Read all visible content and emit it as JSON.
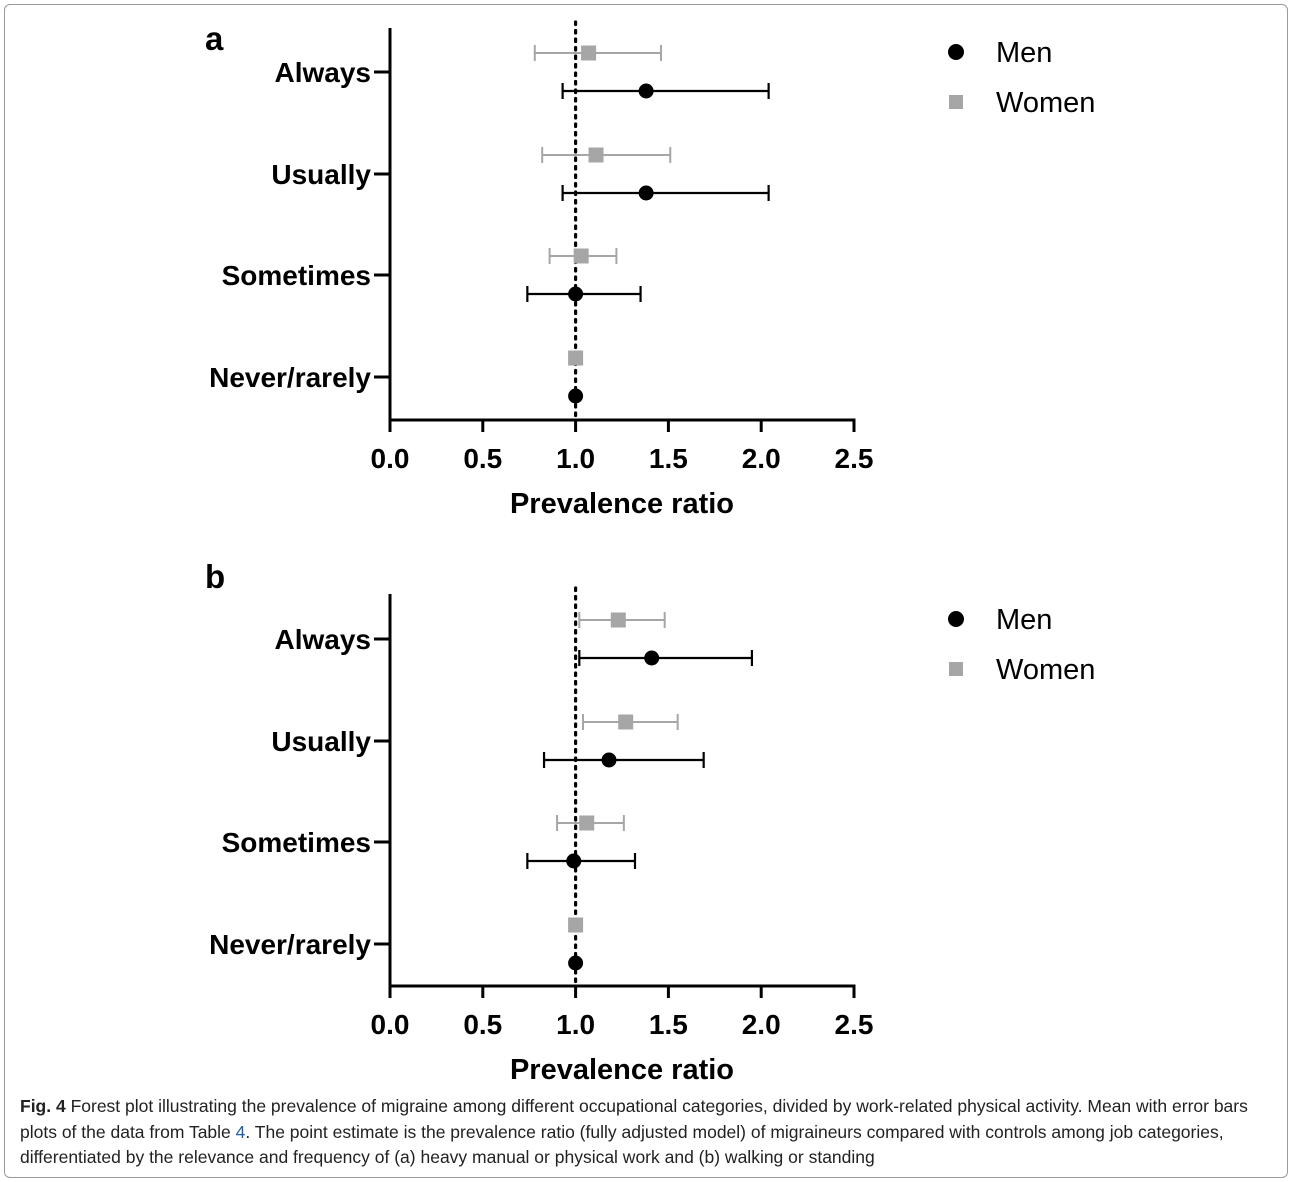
{
  "chart_data": [
    {
      "type": "forest",
      "panel": "a",
      "xlabel": "Prevalence ratio",
      "xlim": [
        0,
        2.5
      ],
      "xticks": [
        "0.0",
        "0.5",
        "1.0",
        "1.5",
        "2.0",
        "2.5"
      ],
      "reference_line": 1.0,
      "categories": [
        "Always",
        "Usually",
        "Sometimes",
        "Never/rarely"
      ],
      "legend": [
        "Men",
        "Women"
      ],
      "legend_position": "top-right",
      "series": [
        {
          "name": "Women",
          "marker": "square",
          "color": "#a6a6a6",
          "estimates": [
            1.07,
            1.11,
            1.03,
            1.0
          ],
          "lower": [
            0.78,
            0.82,
            0.86,
            1.0
          ],
          "upper": [
            1.46,
            1.51,
            1.22,
            1.0
          ]
        },
        {
          "name": "Men",
          "marker": "circle",
          "color": "#000000",
          "estimates": [
            1.38,
            1.38,
            1.0,
            1.0
          ],
          "lower": [
            0.93,
            0.93,
            0.74,
            1.0
          ],
          "upper": [
            2.04,
            2.04,
            1.35,
            1.0
          ]
        }
      ]
    },
    {
      "type": "forest",
      "panel": "b",
      "xlabel": "Prevalence ratio",
      "xlim": [
        0,
        2.5
      ],
      "xticks": [
        "0.0",
        "0.5",
        "1.0",
        "1.5",
        "2.0",
        "2.5"
      ],
      "reference_line": 1.0,
      "categories": [
        "Always",
        "Usually",
        "Sometimes",
        "Never/rarely"
      ],
      "legend": [
        "Men",
        "Women"
      ],
      "legend_position": "top-right",
      "series": [
        {
          "name": "Women",
          "marker": "square",
          "color": "#a6a6a6",
          "estimates": [
            1.23,
            1.27,
            1.06,
            1.0
          ],
          "lower": [
            1.02,
            1.04,
            0.9,
            1.0
          ],
          "upper": [
            1.48,
            1.55,
            1.26,
            1.0
          ]
        },
        {
          "name": "Men",
          "marker": "circle",
          "color": "#000000",
          "estimates": [
            1.41,
            1.18,
            0.99,
            1.0
          ],
          "lower": [
            1.02,
            0.83,
            0.74,
            1.0
          ],
          "upper": [
            1.95,
            1.69,
            1.32,
            1.0
          ]
        }
      ]
    }
  ],
  "caption": {
    "label": "Fig. 4",
    "text_before_ref": " Forest plot illustrating the prevalence of migraine among different occupational categories, divided by work-related physical activity. Mean with error bars plots of the data from Table ",
    "ref": "4",
    "text_after_ref": ". The point estimate is the prevalence ratio (fully adjusted model) of migraineurs compared with controls among job categories, differentiated by the relevance and frequency of (a) heavy manual or physical work and (b) walking or standing"
  }
}
